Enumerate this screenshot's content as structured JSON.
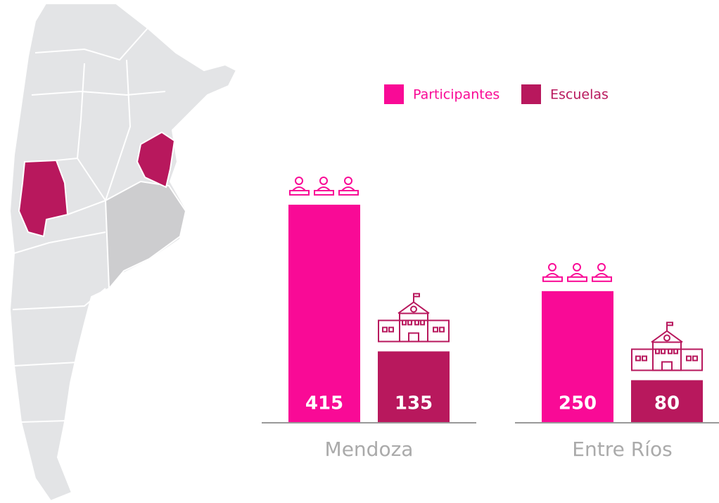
{
  "chart_data": {
    "type": "bar",
    "categories": [
      "Mendoza",
      "Entre Ríos"
    ],
    "series": [
      {
        "name": "Participantes",
        "color": "#f90a96",
        "values": [
          415,
          250
        ]
      },
      {
        "name": "Escuelas",
        "color": "#b8185d",
        "values": [
          135,
          80
        ]
      }
    ],
    "ylim": [
      0,
      560
    ]
  }
}
